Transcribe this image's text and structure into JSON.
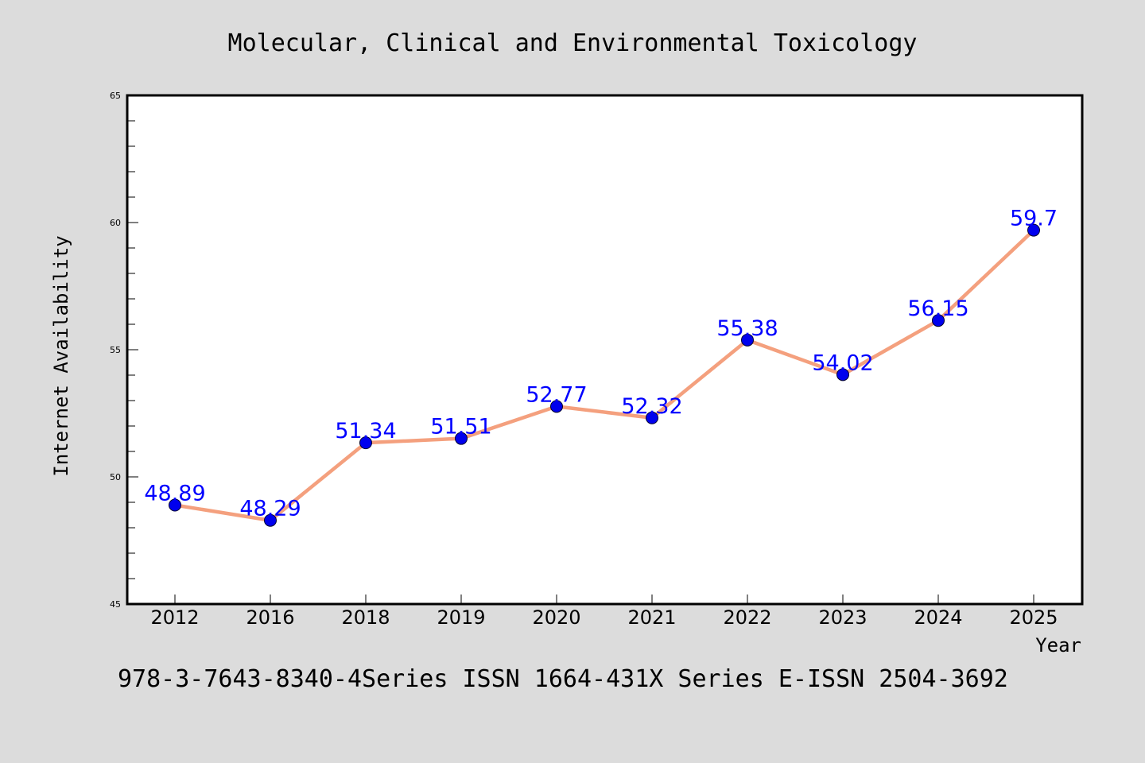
{
  "chart_data": {
    "type": "line",
    "title": "Molecular, Clinical and Environmental Toxicology",
    "footer": "978-3-7643-8340-4Series ISSN 1664-431X Series E-ISSN 2504-3692",
    "xlabel": "Year",
    "ylabel": "Internet Availability",
    "categories": [
      "2012",
      "2016",
      "2018",
      "2019",
      "2020",
      "2021",
      "2022",
      "2023",
      "2024",
      "2025"
    ],
    "series": [
      {
        "values": [
          48.89,
          48.29,
          51.34,
          51.51,
          52.77,
          52.32,
          55.38,
          54.02,
          56.15,
          59.7
        ]
      }
    ],
    "data_labels": [
      "48.89",
      "48.29",
      "51.34",
      "51.51",
      "52.77",
      "52.32",
      "55.38",
      "54.02",
      "56.15",
      "59.7"
    ],
    "ylim": [
      45,
      65
    ],
    "yticks": [
      45,
      50,
      55,
      60,
      65
    ],
    "ytick_labels": [
      "45",
      "50",
      "55",
      "60",
      "65"
    ],
    "grid": false,
    "legend": "none",
    "colors": {
      "line": "#f4a07e",
      "marker": "#0000ee",
      "label": "#0000ff",
      "background": "#dcdcdc",
      "plot_background": "#ffffff",
      "axis": "#000000"
    }
  }
}
